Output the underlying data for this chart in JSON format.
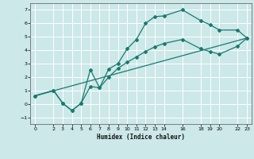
{
  "xlabel": "Humidex (Indice chaleur)",
  "background_color": "#cce8e8",
  "grid_color": "#ffffff",
  "line_color": "#1a7a6e",
  "ylim": [
    -1.5,
    7.5
  ],
  "xlim": [
    -0.5,
    23.5
  ],
  "yticks": [
    -1,
    0,
    1,
    2,
    3,
    4,
    5,
    6,
    7
  ],
  "xticks": [
    0,
    2,
    3,
    4,
    5,
    6,
    7,
    8,
    9,
    10,
    11,
    12,
    13,
    14,
    16,
    18,
    19,
    20,
    22,
    23
  ],
  "xtick_labels": [
    "0",
    "2",
    "3",
    "4",
    "5",
    "6",
    "7",
    "8",
    "9",
    "10",
    "11",
    "12",
    "13",
    "14",
    "16",
    "18",
    "19",
    "20",
    "22",
    "23"
  ],
  "line1_x": [
    0,
    2,
    3,
    4,
    5,
    6,
    7,
    8,
    9,
    10,
    11,
    12,
    13,
    14,
    16,
    18,
    19,
    20,
    22,
    23
  ],
  "line1_y": [
    0.6,
    1.0,
    0.05,
    -0.5,
    0.05,
    2.55,
    1.2,
    2.6,
    3.0,
    4.1,
    4.8,
    6.0,
    6.5,
    6.55,
    7.0,
    6.2,
    5.9,
    5.5,
    5.5,
    4.9
  ],
  "line2_x": [
    0,
    2,
    3,
    4,
    5,
    6,
    7,
    8,
    9,
    10,
    11,
    12,
    13,
    14,
    16,
    18,
    19,
    20,
    22,
    23
  ],
  "line2_y": [
    0.6,
    1.0,
    0.05,
    -0.5,
    0.05,
    1.3,
    1.2,
    2.0,
    2.65,
    3.1,
    3.5,
    3.9,
    4.25,
    4.5,
    4.8,
    4.1,
    3.9,
    3.7,
    4.3,
    4.9
  ],
  "line3_x": [
    0,
    23
  ],
  "line3_y": [
    0.6,
    4.9
  ]
}
